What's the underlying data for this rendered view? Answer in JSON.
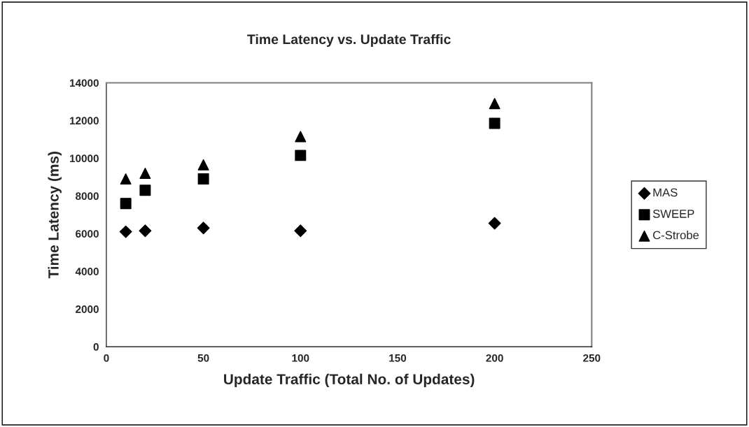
{
  "chart_data": {
    "type": "scatter",
    "title": "Time Latency vs. Update Traffic",
    "xlabel": "Update Traffic (Total No. of Updates)",
    "ylabel": "Time Latency (ms)",
    "x": [
      10,
      20,
      50,
      100,
      200
    ],
    "series": [
      {
        "name": "MAS",
        "color": "#000000",
        "marker": "diamond",
        "values": [
          6100,
          6150,
          6300,
          6150,
          6550
        ]
      },
      {
        "name": "SWEEP",
        "color": "#000000",
        "marker": "square",
        "values": [
          7600,
          8300,
          8900,
          10150,
          11850
        ]
      },
      {
        "name": "C-Strobe",
        "color": "#000000",
        "marker": "triangle",
        "values": [
          8900,
          9200,
          9650,
          11150,
          12900
        ]
      }
    ],
    "xlim": [
      0,
      250
    ],
    "xticks": [
      0,
      50,
      100,
      150,
      200,
      250
    ],
    "ylim": [
      0,
      14000
    ],
    "yticks": [
      0,
      2000,
      4000,
      6000,
      8000,
      10000,
      12000,
      14000
    ],
    "grid": false,
    "legend": "right"
  }
}
